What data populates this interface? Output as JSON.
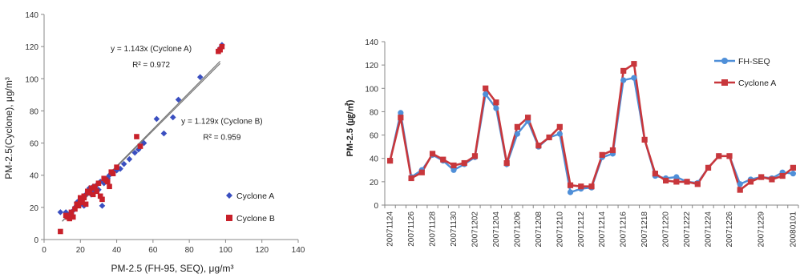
{
  "chart_data": [
    {
      "type": "scatter",
      "title": "",
      "xlabel": "PM-2.5 (FH-95, SEQ), μg/m³",
      "ylabel": "PM-2.5(Cyclone), μg/m³",
      "xlim": [
        0,
        140
      ],
      "ylim": [
        0,
        140
      ],
      "xticks": [
        0,
        20,
        40,
        60,
        80,
        100,
        120,
        140
      ],
      "yticks": [
        0,
        20,
        40,
        60,
        80,
        100,
        120,
        140
      ],
      "grid": false,
      "legend_position": "bottom-right",
      "series": [
        {
          "name": "Cyclone A",
          "color": "#3a4fc0",
          "marker": "diamond",
          "fit_slope": 1.143,
          "x": [
            9,
            12,
            14,
            15,
            16,
            17,
            18,
            18,
            19,
            20,
            21,
            22,
            22,
            23,
            24,
            25,
            26,
            27,
            28,
            29,
            30,
            31,
            32,
            33,
            34,
            35,
            36,
            38,
            40,
            42,
            44,
            47,
            50,
            52,
            55,
            62,
            66,
            71,
            74,
            86,
            97,
            98
          ],
          "y": [
            17,
            17,
            16,
            16,
            18,
            20,
            21,
            23,
            24,
            25,
            22,
            21,
            27,
            28,
            30,
            32,
            28,
            33,
            30,
            34,
            31,
            36,
            21,
            35,
            36,
            38,
            40,
            42,
            43,
            44,
            47,
            50,
            54,
            56,
            60,
            75,
            66,
            76,
            87,
            101,
            119,
            121
          ]
        },
        {
          "name": "Cyclone B",
          "color": "#c8202a",
          "marker": "square",
          "fit_slope": 1.129,
          "x": [
            9,
            12,
            13,
            14,
            15,
            16,
            17,
            18,
            19,
            20,
            20,
            21,
            22,
            22,
            23,
            24,
            25,
            26,
            27,
            28,
            29,
            30,
            31,
            32,
            33,
            34,
            35,
            36,
            37,
            38,
            40,
            51,
            53,
            96,
            97,
            98
          ],
          "y": [
            5,
            15,
            14,
            13,
            17,
            14,
            19,
            22,
            21,
            25,
            26,
            23,
            26,
            27,
            22,
            30,
            29,
            32,
            28,
            33,
            30,
            35,
            27,
            25,
            38,
            37,
            36,
            33,
            42,
            41,
            45,
            64,
            58,
            117,
            118,
            120
          ]
        }
      ],
      "annotations": [
        {
          "text": "y = 1.143x (Cyclone A)",
          "at": [
            59,
            117
          ]
        },
        {
          "text": "R² = 0.972",
          "at": [
            59,
            107
          ]
        },
        {
          "text": "y = 1.129x (Cyclone B)",
          "at": [
            98,
            72
          ]
        },
        {
          "text": "R² = 0.959",
          "at": [
            98,
            62
          ]
        }
      ]
    },
    {
      "type": "line",
      "title": "",
      "xlabel": "",
      "ylabel": "PM-2.5 (㎍/㎥)",
      "ylim": [
        0,
        140
      ],
      "yticks": [
        0,
        20,
        40,
        60,
        80,
        100,
        120,
        140
      ],
      "grid": false,
      "legend_position": "top-right",
      "x": [
        "20071124",
        "20071125",
        "20071126",
        "20071127",
        "20071128",
        "20071129",
        "20071130",
        "20071201",
        "20071202",
        "20071203",
        "20071204",
        "20071205",
        "20071206",
        "20071207",
        "20071208",
        "20071209",
        "20071210",
        "20071211",
        "20071212",
        "20071213",
        "20071214",
        "20071215",
        "20071216",
        "20071217",
        "20071218",
        "20071219",
        "20071220",
        "20071221",
        "20071222",
        "20071223",
        "20071224",
        "20071225",
        "20071226",
        "20071227",
        "20071228",
        "20071229",
        "20071230",
        "20071231",
        "20080101"
      ],
      "x_tick_labels": [
        "20071124",
        "20071126",
        "20071128",
        "20071130",
        "20071202",
        "20071204",
        "20071206",
        "20071208",
        "20071210",
        "20071212",
        "20071214",
        "20071216",
        "20071218",
        "20071220",
        "20071222",
        "20071224",
        "20071226",
        "20071229",
        "20080101"
      ],
      "series": [
        {
          "name": "FH-SEQ",
          "color": "#4f8fd8",
          "marker": "circle",
          "values": [
            38,
            79,
            24,
            30,
            43,
            38,
            30,
            35,
            41,
            95,
            83,
            35,
            61,
            72,
            50,
            58,
            61,
            11,
            14,
            15,
            41,
            44,
            107,
            109,
            56,
            25,
            23,
            24,
            20,
            19,
            32,
            42,
            42,
            18,
            22,
            24,
            23,
            28,
            27
          ]
        },
        {
          "name": "Cyclone A",
          "color": "#c8373c",
          "marker": "square",
          "values": [
            38,
            75,
            23,
            28,
            44,
            39,
            34,
            36,
            42,
            100,
            88,
            36,
            67,
            75,
            51,
            58,
            67,
            17,
            16,
            16,
            43,
            47,
            115,
            121,
            56,
            27,
            21,
            20,
            20,
            18,
            32,
            42,
            42,
            13,
            20,
            24,
            22,
            25,
            32
          ]
        }
      ]
    }
  ]
}
